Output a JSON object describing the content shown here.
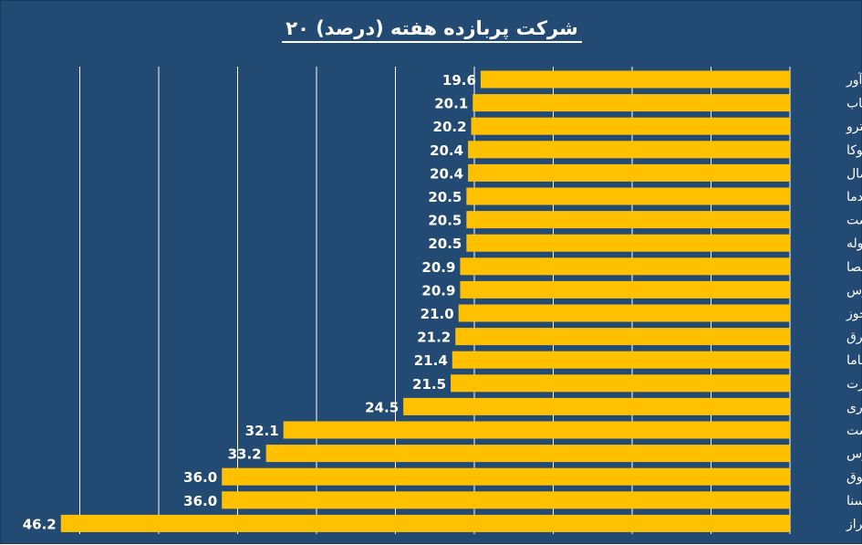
{
  "chart_data": {
    "type": "bar",
    "orientation": "horizontal",
    "title": "۲۰ شرکت پربازده هفته (درصد)",
    "categories": [
      "کفرآور",
      "بکاب",
      "حپترو",
      "حتوکا",
      "سشمال",
      "کدما",
      "غدشت",
      "فلوله",
      "واحصا",
      "ثزاگرس",
      "وثخوز",
      "کشرق",
      "فاما",
      "هجرت",
      "ساذری",
      "پلاست",
      "بورس",
      "وثوق",
      "وسنا",
      "ولراز"
    ],
    "values": [
      19.6,
      20.1,
      20.2,
      20.4,
      20.4,
      20.5,
      20.5,
      20.5,
      20.9,
      20.9,
      21.0,
      21.2,
      21.4,
      21.5,
      24.5,
      32.1,
      33.2,
      36.0,
      36.0,
      46.2
    ],
    "data_labels": [
      "19.6",
      "20.1",
      "20.2",
      "20.4",
      "20.4",
      "20.5",
      "20.5",
      "20.5",
      "20.9",
      "20.9",
      "21.0",
      "21.2",
      "21.4",
      "21.5",
      "24.5",
      "32.1",
      "33.2",
      "36.0",
      "36.0",
      "46.2"
    ],
    "xlim": [
      0,
      50
    ],
    "x_reversed": true,
    "grid": true,
    "colors": {
      "background": "#234a73",
      "bar": "#ffc000",
      "gridline": "#ffffff",
      "text": "#ffffff"
    }
  }
}
